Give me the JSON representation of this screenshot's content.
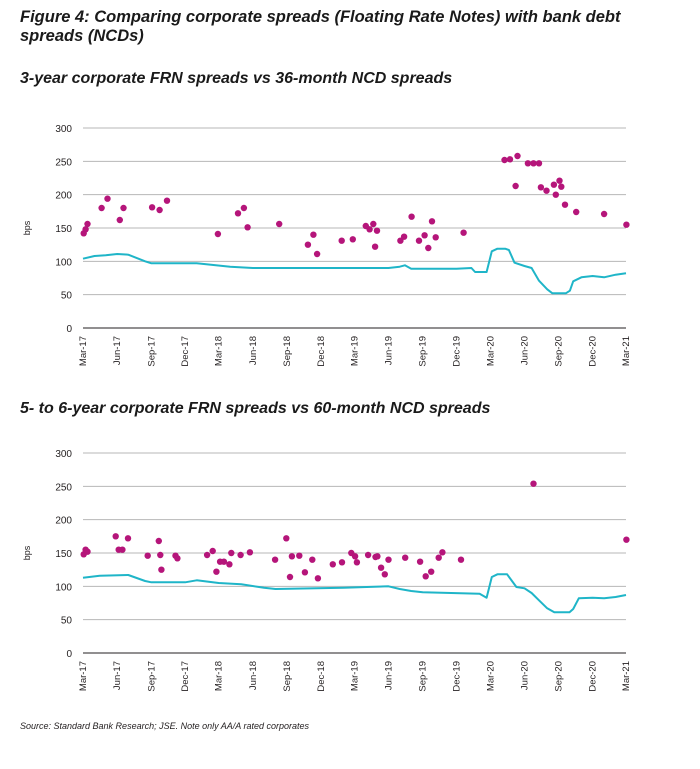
{
  "figure": {
    "title": "Figure 4: Comparing corporate spreads (Floating Rate Notes) with bank debt spreads (NCDs)",
    "source": "Source: Standard Bank Research; JSE. Note only AA/A rated corporates"
  },
  "colors": {
    "frn_dots": "#b5157a",
    "ncd_line": "#1fb5c8",
    "grid": "#b7b7b7",
    "axis_text": "#231f20"
  },
  "chart_data": [
    {
      "type": "scatter+line",
      "title": "3-year corporate FRN spreads vs 36-month NCD spreads",
      "ylabel": "bps",
      "ylim": [
        0,
        300
      ],
      "yticks": [
        0,
        50,
        100,
        150,
        200,
        250,
        300
      ],
      "grid": true,
      "xticks": [
        "Mar-17",
        "Jun-17",
        "Sep-17",
        "Dec-17",
        "Mar-18",
        "Jun-18",
        "Sep-18",
        "Dec-18",
        "Mar-19",
        "Jun-19",
        "Sep-19",
        "Dec-19",
        "Mar-20",
        "Jun-20",
        "Sep-20",
        "Dec-20",
        "Mar-21"
      ],
      "scatter": [
        [
          "2017-03-03",
          142
        ],
        [
          "2017-03-08",
          148
        ],
        [
          "2017-03-13",
          156
        ],
        [
          "2017-04-20",
          180
        ],
        [
          "2017-05-06",
          194
        ],
        [
          "2017-06-08",
          162
        ],
        [
          "2017-06-18",
          180
        ],
        [
          "2017-09-03",
          181
        ],
        [
          "2017-09-23",
          177
        ],
        [
          "2017-10-13",
          191
        ],
        [
          "2018-02-27",
          141
        ],
        [
          "2018-04-22",
          172
        ],
        [
          "2018-05-08",
          180
        ],
        [
          "2018-05-18",
          151
        ],
        [
          "2018-08-11",
          156
        ],
        [
          "2018-10-27",
          125
        ],
        [
          "2018-11-11",
          140
        ],
        [
          "2018-11-21",
          111
        ],
        [
          "2019-01-26",
          131
        ],
        [
          "2019-02-25",
          133
        ],
        [
          "2019-04-01",
          153
        ],
        [
          "2019-04-11",
          148
        ],
        [
          "2019-04-21",
          156
        ],
        [
          "2019-04-26",
          122
        ],
        [
          "2019-05-01",
          146
        ],
        [
          "2019-07-03",
          131
        ],
        [
          "2019-07-13",
          137
        ],
        [
          "2019-08-02",
          167
        ],
        [
          "2019-08-22",
          131
        ],
        [
          "2019-09-06",
          139
        ],
        [
          "2019-09-16",
          120
        ],
        [
          "2019-09-26",
          160
        ],
        [
          "2019-10-06",
          136
        ],
        [
          "2019-12-20",
          143
        ],
        [
          "2020-04-08",
          252
        ],
        [
          "2020-04-23",
          253
        ],
        [
          "2020-05-08",
          213
        ],
        [
          "2020-05-13",
          258
        ],
        [
          "2020-06-10",
          247
        ],
        [
          "2020-06-25",
          247
        ],
        [
          "2020-07-10",
          247
        ],
        [
          "2020-07-15",
          211
        ],
        [
          "2020-07-30",
          206
        ],
        [
          "2020-08-19",
          215
        ],
        [
          "2020-08-24",
          200
        ],
        [
          "2020-09-03",
          221
        ],
        [
          "2020-09-08",
          212
        ],
        [
          "2020-09-18",
          185
        ],
        [
          "2020-10-18",
          174
        ],
        [
          "2021-01-01",
          171
        ],
        [
          "2021-03-02",
          155
        ]
      ],
      "line": [
        [
          "2017-03-01",
          104
        ],
        [
          "2017-04-01",
          108
        ],
        [
          "2017-05-01",
          109
        ],
        [
          "2017-06-01",
          111
        ],
        [
          "2017-07-01",
          110
        ],
        [
          "2017-08-15",
          100
        ],
        [
          "2017-09-01",
          97
        ],
        [
          "2017-12-01",
          97
        ],
        [
          "2018-01-01",
          97
        ],
        [
          "2018-04-01",
          92
        ],
        [
          "2018-06-01",
          90
        ],
        [
          "2018-12-01",
          90
        ],
        [
          "2019-06-01",
          90
        ],
        [
          "2019-07-01",
          92
        ],
        [
          "2019-07-15",
          94
        ],
        [
          "2019-08-01",
          89
        ],
        [
          "2019-12-01",
          89
        ],
        [
          "2020-01-10",
          90
        ],
        [
          "2020-01-20",
          84
        ],
        [
          "2020-02-20",
          84
        ],
        [
          "2020-03-05",
          115
        ],
        [
          "2020-03-20",
          119
        ],
        [
          "2020-04-10",
          119
        ],
        [
          "2020-04-20",
          117
        ],
        [
          "2020-05-05",
          98
        ],
        [
          "2020-06-01",
          93
        ],
        [
          "2020-06-20",
          90
        ],
        [
          "2020-07-10",
          71
        ],
        [
          "2020-08-01",
          58
        ],
        [
          "2020-08-15",
          52
        ],
        [
          "2020-09-20",
          52
        ],
        [
          "2020-10-01",
          56
        ],
        [
          "2020-10-10",
          70
        ],
        [
          "2020-11-01",
          76
        ],
        [
          "2020-12-01",
          78
        ],
        [
          "2021-01-01",
          76
        ],
        [
          "2021-02-01",
          80
        ],
        [
          "2021-03-01",
          82
        ]
      ]
    },
    {
      "type": "scatter+line",
      "title": "5- to 6-year corporate FRN spreads vs 60-month NCD spreads",
      "ylabel": "bps",
      "ylim": [
        0,
        300
      ],
      "yticks": [
        0,
        50,
        100,
        150,
        200,
        250,
        300
      ],
      "grid": true,
      "xticks": [
        "Mar-17",
        "Jun-17",
        "Sep-17",
        "Dec-17",
        "Mar-18",
        "Jun-18",
        "Sep-18",
        "Dec-18",
        "Mar-19",
        "Jun-19",
        "Sep-19",
        "Dec-19",
        "Mar-20",
        "Jun-20",
        "Sep-20",
        "Dec-20",
        "Mar-21"
      ],
      "scatter": [
        [
          "2017-03-03",
          148
        ],
        [
          "2017-03-08",
          155
        ],
        [
          "2017-03-13",
          152
        ],
        [
          "2017-05-28",
          175
        ],
        [
          "2017-06-05",
          155
        ],
        [
          "2017-06-15",
          155
        ],
        [
          "2017-06-30",
          172
        ],
        [
          "2017-08-22",
          146
        ],
        [
          "2017-09-21",
          168
        ],
        [
          "2017-09-25",
          147
        ],
        [
          "2017-09-28",
          125
        ],
        [
          "2017-11-05",
          146
        ],
        [
          "2017-11-10",
          142
        ],
        [
          "2018-01-29",
          147
        ],
        [
          "2018-02-13",
          153
        ],
        [
          "2018-02-23",
          122
        ],
        [
          "2018-03-05",
          137
        ],
        [
          "2018-03-15",
          137
        ],
        [
          "2018-03-30",
          133
        ],
        [
          "2018-04-04",
          150
        ],
        [
          "2018-04-29",
          147
        ],
        [
          "2018-05-24",
          151
        ],
        [
          "2018-07-31",
          140
        ],
        [
          "2018-08-30",
          172
        ],
        [
          "2018-09-09",
          114
        ],
        [
          "2018-09-14",
          145
        ],
        [
          "2018-10-04",
          146
        ],
        [
          "2018-10-19",
          121
        ],
        [
          "2018-11-08",
          140
        ],
        [
          "2018-11-23",
          112
        ],
        [
          "2019-01-02",
          133
        ],
        [
          "2019-01-27",
          136
        ],
        [
          "2019-02-21",
          150
        ],
        [
          "2019-03-03",
          145
        ],
        [
          "2019-03-08",
          136
        ],
        [
          "2019-04-07",
          147
        ],
        [
          "2019-04-27",
          144
        ],
        [
          "2019-05-02",
          145
        ],
        [
          "2019-05-12",
          128
        ],
        [
          "2019-05-22",
          118
        ],
        [
          "2019-06-01",
          140
        ],
        [
          "2019-07-16",
          143
        ],
        [
          "2019-08-25",
          137
        ],
        [
          "2019-09-09",
          115
        ],
        [
          "2019-09-24",
          122
        ],
        [
          "2019-10-14",
          143
        ],
        [
          "2019-10-24",
          151
        ],
        [
          "2019-12-13",
          140
        ],
        [
          "2020-06-25",
          254
        ],
        [
          "2021-03-02",
          170
        ]
      ],
      "line": [
        [
          "2017-03-01",
          113
        ],
        [
          "2017-04-15",
          116
        ],
        [
          "2017-07-01",
          117
        ],
        [
          "2017-08-15",
          108
        ],
        [
          "2017-09-01",
          106
        ],
        [
          "2017-12-01",
          106
        ],
        [
          "2018-01-01",
          109
        ],
        [
          "2018-03-01",
          105
        ],
        [
          "2018-05-01",
          103
        ],
        [
          "2018-07-01",
          98
        ],
        [
          "2018-08-01",
          96
        ],
        [
          "2019-02-01",
          98
        ],
        [
          "2019-06-01",
          100
        ],
        [
          "2019-07-01",
          96
        ],
        [
          "2019-08-01",
          93
        ],
        [
          "2019-09-01",
          91
        ],
        [
          "2020-02-01",
          89
        ],
        [
          "2020-02-20",
          83
        ],
        [
          "2020-03-05",
          114
        ],
        [
          "2020-03-20",
          118
        ],
        [
          "2020-04-15",
          118
        ],
        [
          "2020-05-10",
          99
        ],
        [
          "2020-06-01",
          97
        ],
        [
          "2020-06-20",
          90
        ],
        [
          "2020-07-10",
          79
        ],
        [
          "2020-08-01",
          67
        ],
        [
          "2020-08-20",
          61
        ],
        [
          "2020-09-30",
          61
        ],
        [
          "2020-10-10",
          66
        ],
        [
          "2020-10-25",
          82
        ],
        [
          "2020-12-01",
          83
        ],
        [
          "2021-01-01",
          82
        ],
        [
          "2021-02-01",
          84
        ],
        [
          "2021-03-01",
          87
        ]
      ]
    }
  ]
}
